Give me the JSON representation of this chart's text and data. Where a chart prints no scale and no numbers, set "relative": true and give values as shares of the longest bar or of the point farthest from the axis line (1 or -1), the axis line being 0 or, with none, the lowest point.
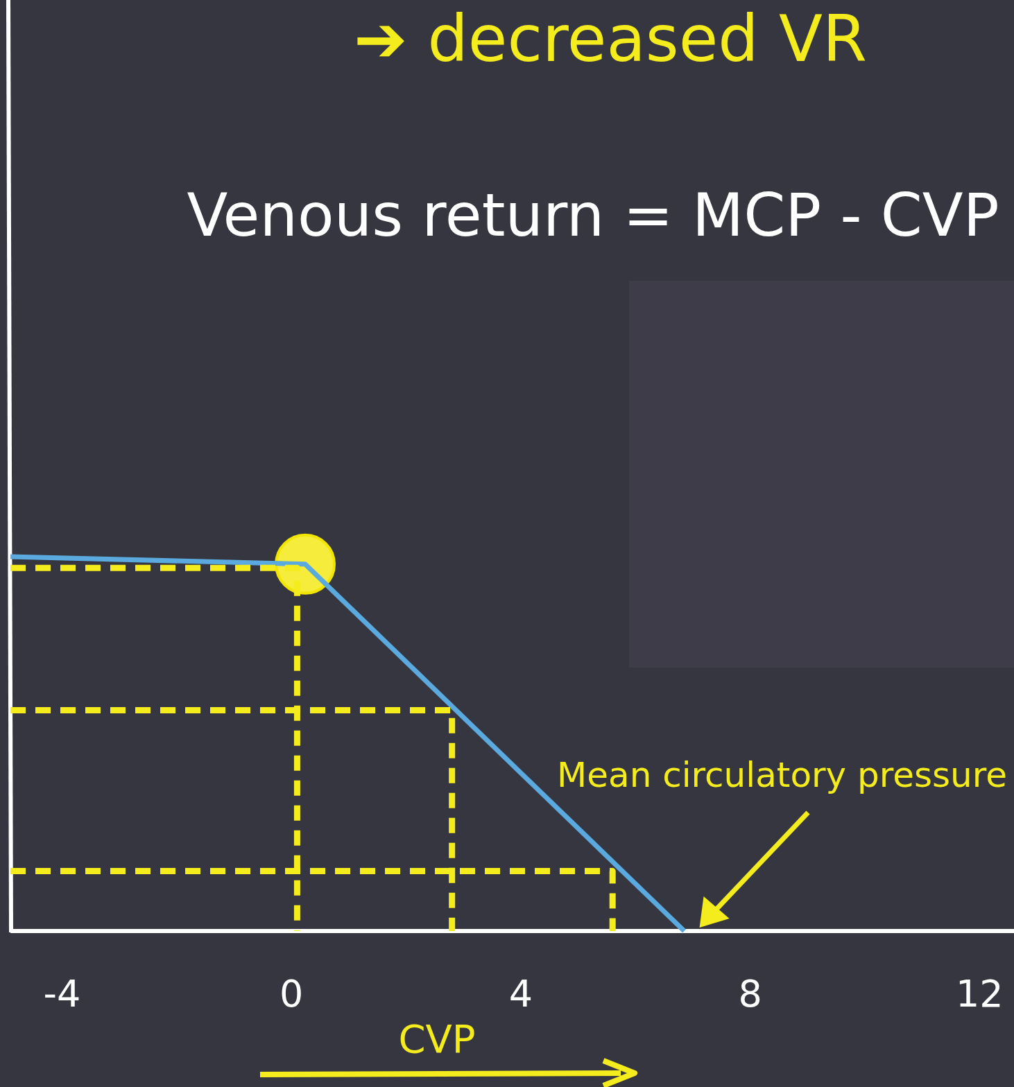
{
  "chart_data": {
    "type": "line",
    "title": "➔ decreased VR",
    "subtitle": "Venous return = MCP - CVP",
    "xlabel": "CVP",
    "relative": true,
    "xlim": [
      -4.9,
      12.6
    ],
    "xticks": [
      -4,
      0,
      4,
      8,
      12
    ],
    "series": [
      {
        "color": "#5aaae0",
        "x": [
          -4.9,
          0.24,
          6.85
        ],
        "values": [
          1,
          0.98,
          0
        ],
        "line_style": "solid",
        "marker": "none"
      },
      {
        "type": "line",
        "color": "#f5ec1e",
        "x": [
          -4.9,
          0.1,
          0.1
        ],
        "values": [
          0.97,
          0.97,
          0
        ],
        "line_style": "dashed",
        "marker": "none"
      },
      {
        "type": "line",
        "color": "#f5ec1e",
        "x": [
          -4.9,
          2.8,
          2.8
        ],
        "values": [
          0.59,
          0.59,
          0
        ],
        "line_style": "dashed",
        "marker": "none"
      },
      {
        "type": "line",
        "color": "#f5ec1e",
        "x": [
          -4.9,
          5.6,
          5.6
        ],
        "values": [
          0.16,
          0.16,
          0
        ],
        "line_style": "dashed",
        "marker": "none"
      },
      {
        "type": "scatter",
        "color": "#f5ec3c",
        "x": [
          0.24
        ],
        "values": [
          0.98
        ],
        "marker": "circle"
      }
    ],
    "annotations": [
      "Mean circulatory pressure"
    ]
  }
}
